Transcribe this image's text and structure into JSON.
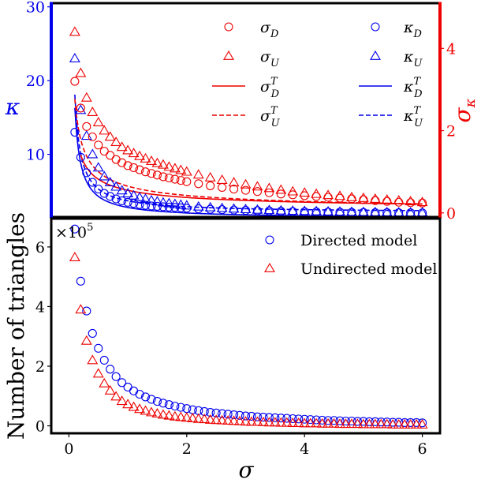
{
  "chart_data": [
    {
      "type": "scatter",
      "panel": "top",
      "xlim": [
        -0.3,
        6.3
      ],
      "y_left": {
        "label": "κ",
        "color": "#0000ee",
        "lim": [
          1.5,
          30.5
        ],
        "ticks": [
          10,
          20,
          30
        ]
      },
      "y_right": {
        "label": "σκ",
        "color": "#ee0000",
        "lim": [
          -0.1,
          5.1
        ],
        "ticks": [
          0,
          2,
          4
        ]
      },
      "x_ticks_shown": false,
      "legend": {
        "placement": "top-right",
        "entries": [
          {
            "label": "σD",
            "base": "σ",
            "sub": "D",
            "sup": "",
            "marker": "circle",
            "line": "",
            "color": "#ee0000"
          },
          {
            "label": "κD",
            "base": "κ",
            "sub": "D",
            "sup": "",
            "marker": "circle",
            "line": "",
            "color": "#0000ee"
          },
          {
            "label": "σU",
            "base": "σ",
            "sub": "U",
            "sup": "",
            "marker": "triangle",
            "line": "",
            "color": "#ee0000"
          },
          {
            "label": "κU",
            "base": "κ",
            "sub": "U",
            "sup": "",
            "marker": "triangle",
            "line": "",
            "color": "#0000ee"
          },
          {
            "label": "σD T",
            "base": "σ",
            "sub": "D",
            "sup": "T",
            "marker": "",
            "line": "solid",
            "color": "#ee0000"
          },
          {
            "label": "κD T",
            "base": "κ",
            "sub": "D",
            "sup": "T",
            "marker": "",
            "line": "solid",
            "color": "#0000ee"
          },
          {
            "label": "σU T",
            "base": "σ",
            "sub": "U",
            "sup": "T",
            "marker": "",
            "line": "dashed",
            "color": "#ee0000"
          },
          {
            "label": "κU T",
            "base": "κ",
            "sub": "U",
            "sup": "T",
            "marker": "",
            "line": "dashed",
            "color": "#0000ee"
          }
        ]
      },
      "series": [
        {
          "name": "κD",
          "axis": "left",
          "marker": "circle",
          "color": "#0000ee",
          "x": [
            0.1,
            0.2,
            0.3,
            0.4,
            0.5,
            0.6,
            0.7,
            0.8,
            0.9,
            1.0,
            1.1,
            1.2,
            1.3,
            1.4,
            1.5,
            1.6,
            1.7,
            1.8,
            1.9,
            2.0,
            2.2,
            2.4,
            2.6,
            2.8,
            3.0,
            3.2,
            3.4,
            3.6,
            3.8,
            4.0,
            4.2,
            4.4,
            4.6,
            4.8,
            5.0,
            5.2,
            5.4,
            5.6,
            5.8,
            6.0
          ],
          "y": [
            13,
            9.6,
            7.5,
            6.2,
            5.3,
            4.7,
            4.3,
            3.95,
            3.7,
            3.5,
            3.35,
            3.2,
            3.1,
            3.0,
            2.95,
            2.9,
            2.85,
            2.8,
            2.75,
            2.7,
            2.62,
            2.55,
            2.5,
            2.45,
            2.4,
            2.36,
            2.32,
            2.28,
            2.25,
            2.22,
            2.2,
            2.18,
            2.16,
            2.14,
            2.12,
            2.1,
            2.09,
            2.08,
            2.07,
            2.06
          ]
        },
        {
          "name": "κU",
          "axis": "left",
          "marker": "triangle",
          "color": "#0000ee",
          "x": [
            0.1,
            0.2,
            0.3,
            0.4,
            0.5,
            0.6,
            0.7,
            0.8,
            0.9,
            1.0,
            1.1,
            1.2,
            1.3,
            1.4,
            1.5,
            1.6,
            1.7,
            1.8,
            1.9,
            2.0,
            2.2,
            2.4,
            2.6,
            2.8,
            3.0,
            3.2,
            3.4,
            3.6,
            3.8,
            4.0,
            4.2,
            4.4,
            4.6,
            4.8,
            5.0,
            5.2,
            5.4,
            5.6,
            5.8,
            6.0
          ],
          "y": [
            23,
            16,
            12.5,
            10,
            8.2,
            7.0,
            6.2,
            5.6,
            5.1,
            4.7,
            4.4,
            4.15,
            3.95,
            3.75,
            3.6,
            3.45,
            3.35,
            3.25,
            3.15,
            3.05,
            2.9,
            2.8,
            2.7,
            2.62,
            2.55,
            2.48,
            2.42,
            2.37,
            2.33,
            2.3,
            2.27,
            2.24,
            2.21,
            2.19,
            2.17,
            2.15,
            2.13,
            2.12,
            2.11,
            2.1
          ]
        },
        {
          "name": "κD T",
          "axis": "left",
          "line": "solid",
          "color": "#0000ee",
          "curve": {
            "a": 1.3,
            "b": 1.5,
            "from": 0.1,
            "to": 6.0
          }
        },
        {
          "name": "κU T",
          "axis": "left",
          "line": "dashed",
          "color": "#0000ee",
          "curve": {
            "a": 2.1,
            "b": 1.6,
            "from": 0.1,
            "to": 6.0
          }
        },
        {
          "name": "σD",
          "axis": "right",
          "marker": "circle",
          "color": "#ee0000",
          "x": [
            0.1,
            0.2,
            0.3,
            0.4,
            0.5,
            0.6,
            0.7,
            0.8,
            0.9,
            1.0,
            1.1,
            1.2,
            1.3,
            1.4,
            1.5,
            1.6,
            1.7,
            1.8,
            1.9,
            2.0,
            2.2,
            2.4,
            2.6,
            2.8,
            3.0,
            3.2,
            3.4,
            3.6,
            3.8,
            4.0,
            4.2,
            4.4,
            4.6,
            4.8,
            5.0,
            5.2,
            5.4,
            5.6,
            5.8,
            6.0
          ],
          "y": [
            3.2,
            2.55,
            2.1,
            1.85,
            1.65,
            1.5,
            1.4,
            1.3,
            1.22,
            1.15,
            1.1,
            1.05,
            1.0,
            0.96,
            0.92,
            0.88,
            0.85,
            0.82,
            0.79,
            0.76,
            0.71,
            0.66,
            0.62,
            0.58,
            0.55,
            0.52,
            0.49,
            0.46,
            0.44,
            0.42,
            0.4,
            0.38,
            0.36,
            0.34,
            0.32,
            0.3,
            0.28,
            0.26,
            0.25,
            0.24
          ]
        },
        {
          "name": "σU",
          "axis": "right",
          "marker": "triangle",
          "color": "#ee0000",
          "x": [
            0.1,
            0.2,
            0.3,
            0.4,
            0.5,
            0.6,
            0.7,
            0.8,
            0.9,
            1.0,
            1.1,
            1.2,
            1.3,
            1.4,
            1.5,
            1.6,
            1.7,
            1.8,
            1.9,
            2.0,
            2.2,
            2.4,
            2.6,
            2.8,
            3.0,
            3.2,
            3.4,
            3.6,
            3.8,
            4.0,
            4.2,
            4.4,
            4.6,
            4.8,
            5.0,
            5.2,
            5.4,
            5.6,
            5.8,
            6.0
          ],
          "y": [
            4.4,
            3.4,
            2.8,
            2.45,
            2.2,
            2.0,
            1.85,
            1.72,
            1.6,
            1.52,
            1.45,
            1.38,
            1.32,
            1.26,
            1.21,
            1.17,
            1.12,
            1.08,
            1.04,
            1.0,
            0.93,
            0.86,
            0.8,
            0.74,
            0.69,
            0.64,
            0.6,
            0.56,
            0.52,
            0.49,
            0.46,
            0.43,
            0.41,
            0.38,
            0.36,
            0.34,
            0.32,
            0.3,
            0.28,
            0.26
          ]
        },
        {
          "name": "σD T",
          "axis": "right",
          "line": "solid",
          "color": "#ee0000",
          "curve": {
            "a": 0.05,
            "b": 0.5,
            "p": 0.62,
            "from": 0.2,
            "to": 6.0
          }
        },
        {
          "name": "σU T",
          "axis": "right",
          "line": "dashed",
          "color": "#ee0000",
          "curve": {
            "a": 0.02,
            "b": 0.63,
            "p": 0.64,
            "from": 0.1,
            "to": 6.0
          }
        }
      ]
    },
    {
      "type": "scatter",
      "panel": "bottom",
      "xlim": [
        -0.3,
        6.3
      ],
      "ylim": [
        -0.25,
        6.95
      ],
      "xlabel": "σ",
      "ylabel": "Number of triangles",
      "y_scale_base": "×10",
      "y_scale_exp": "5",
      "x_ticks": [
        0,
        2,
        4,
        6
      ],
      "y_ticks": [
        0,
        2,
        4,
        6
      ],
      "legend": {
        "placement": "top-right",
        "entries": [
          {
            "label": "Directed model",
            "marker": "circle",
            "color": "#0000ee"
          },
          {
            "label": "Undirected model",
            "marker": "triangle",
            "color": "#ee0000"
          }
        ]
      },
      "series": [
        {
          "name": "Directed model",
          "marker": "circle",
          "color": "#0000ee",
          "x": [
            0.1,
            0.2,
            0.3,
            0.4,
            0.5,
            0.6,
            0.7,
            0.8,
            0.9,
            1.0,
            1.1,
            1.2,
            1.3,
            1.4,
            1.5,
            1.6,
            1.7,
            1.8,
            1.9,
            2.0,
            2.1,
            2.2,
            2.3,
            2.4,
            2.5,
            2.6,
            2.7,
            2.8,
            2.9,
            3.0,
            3.1,
            3.2,
            3.3,
            3.4,
            3.5,
            3.6,
            3.7,
            3.8,
            3.9,
            4.0,
            4.1,
            4.2,
            4.3,
            4.4,
            4.5,
            4.6,
            4.7,
            4.8,
            4.9,
            5.0,
            5.1,
            5.2,
            5.3,
            5.4,
            5.5,
            5.6,
            5.7,
            5.8,
            5.9,
            6.0
          ],
          "y": [
            6.6,
            4.85,
            3.85,
            3.1,
            2.6,
            2.2,
            1.9,
            1.65,
            1.45,
            1.3,
            1.17,
            1.06,
            0.97,
            0.89,
            0.82,
            0.76,
            0.71,
            0.66,
            0.62,
            0.58,
            0.54,
            0.51,
            0.48,
            0.45,
            0.43,
            0.41,
            0.39,
            0.37,
            0.35,
            0.33,
            0.32,
            0.3,
            0.29,
            0.28,
            0.27,
            0.26,
            0.25,
            0.24,
            0.23,
            0.22,
            0.21,
            0.2,
            0.19,
            0.18,
            0.18,
            0.17,
            0.16,
            0.16,
            0.15,
            0.15,
            0.14,
            0.14,
            0.13,
            0.13,
            0.12,
            0.12,
            0.11,
            0.11,
            0.11,
            0.1
          ]
        },
        {
          "name": "Undirected model",
          "marker": "triangle",
          "color": "#ee0000",
          "x": [
            0.1,
            0.2,
            0.3,
            0.4,
            0.5,
            0.6,
            0.7,
            0.8,
            0.9,
            1.0,
            1.1,
            1.2,
            1.3,
            1.4,
            1.5,
            1.6,
            1.7,
            1.8,
            1.9,
            2.0,
            2.1,
            2.2,
            2.3,
            2.4,
            2.5,
            2.6,
            2.7,
            2.8,
            2.9,
            3.0,
            3.1,
            3.2,
            3.3,
            3.4,
            3.5,
            3.6,
            3.7,
            3.8,
            3.9,
            4.0,
            4.1,
            4.2,
            4.3,
            4.4,
            4.5,
            4.6,
            4.7,
            4.8,
            4.9,
            5.0,
            5.1,
            5.2,
            5.3,
            5.4,
            5.5,
            5.6,
            5.7,
            5.8,
            5.9,
            6.0
          ],
          "y": [
            5.65,
            3.9,
            2.85,
            2.2,
            1.75,
            1.42,
            1.18,
            0.98,
            0.83,
            0.72,
            0.63,
            0.56,
            0.5,
            0.45,
            0.41,
            0.37,
            0.34,
            0.31,
            0.29,
            0.27,
            0.25,
            0.23,
            0.22,
            0.2,
            0.19,
            0.18,
            0.17,
            0.16,
            0.15,
            0.14,
            0.13,
            0.13,
            0.12,
            0.11,
            0.11,
            0.1,
            0.1,
            0.09,
            0.09,
            0.08,
            0.08,
            0.08,
            0.07,
            0.07,
            0.07,
            0.06,
            0.06,
            0.06,
            0.06,
            0.05,
            0.05,
            0.05,
            0.05,
            0.05,
            0.04,
            0.04,
            0.04,
            0.04,
            0.04,
            0.04
          ]
        }
      ]
    }
  ]
}
